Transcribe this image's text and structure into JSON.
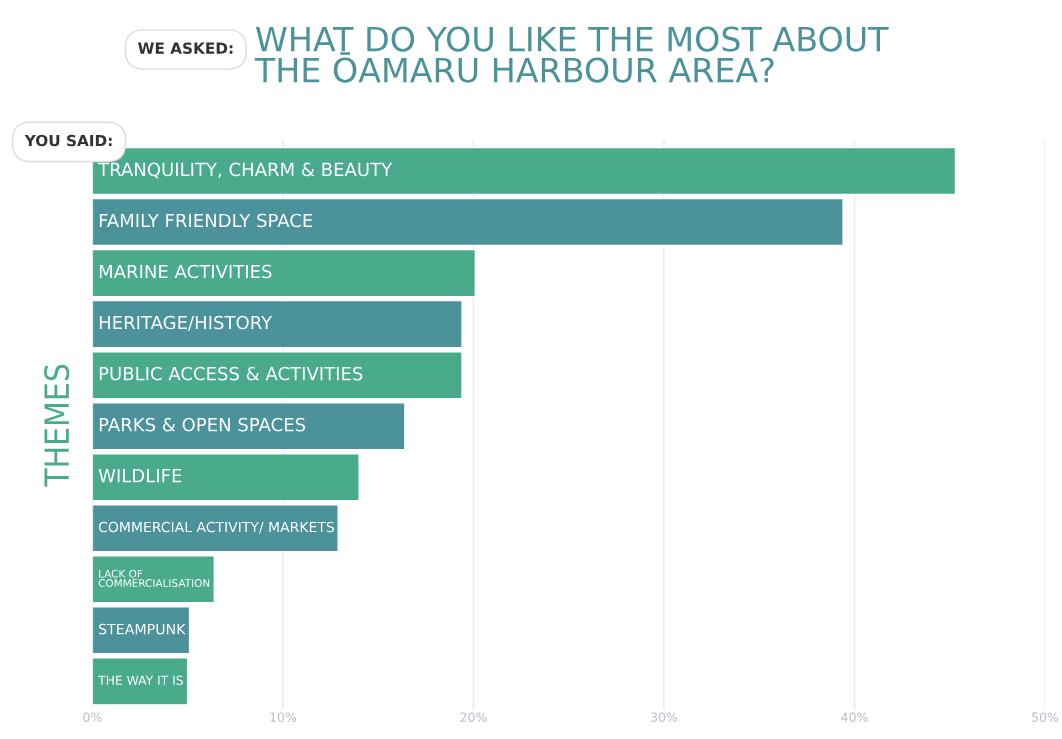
{
  "chart_data": {
    "type": "bar",
    "orientation": "horizontal",
    "title": "WHAT DO YOU LIKE THE MOST ABOUT\nTHE ŌAMARU HARBOUR AREA?",
    "ylabel": "THEMES",
    "annotations": [
      "WE ASKED:",
      "YOU SAID:"
    ],
    "categories": [
      "TRANQUILITY, CHARM & BEAUTY",
      "FAMILY FRIENDLY SPACE",
      "MARINE ACTIVITIES",
      "HERITAGE/HISTORY",
      "PUBLIC ACCESS & ACTIVITIES",
      "PARKS & OPEN SPACES",
      "WILDLIFE",
      "COMMERCIAL ACTIVITY/ MARKETS",
      "LACK OF\nCOMMERCIALISATION",
      "STEAMPUNK",
      "THE WAY IT IS"
    ],
    "values": [
      45.3,
      39.4,
      20.1,
      19.4,
      19.4,
      16.4,
      14.0,
      12.9,
      6.4,
      5.1,
      5.0
    ],
    "colors": [
      "#4aab8c",
      "#4b929a",
      "#4aab8c",
      "#4b929a",
      "#4aab8c",
      "#4b929a",
      "#4aab8c",
      "#4b929a",
      "#4aab8c",
      "#4b929a",
      "#4aab8c"
    ],
    "xlim": [
      0,
      50
    ],
    "xticks": [
      {
        "value": 0,
        "label": "0%"
      },
      {
        "value": 10,
        "label": "10%"
      },
      {
        "value": 20,
        "label": "20%"
      },
      {
        "value": 30,
        "label": "30%"
      },
      {
        "value": 40,
        "label": "40%"
      },
      {
        "value": 50,
        "label": "50%"
      }
    ],
    "grid": "x",
    "legend": false
  }
}
